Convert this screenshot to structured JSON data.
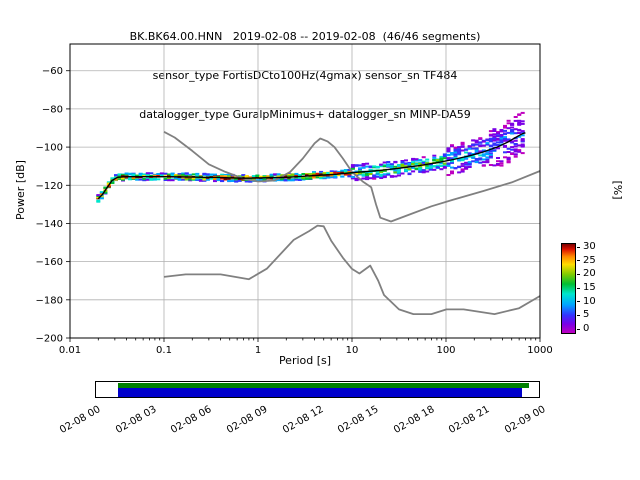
{
  "title": {
    "line1": "BK.BK64.00.HNN   2019-02-08 -- 2019-02-08  (46/46 segments)",
    "line2": "sensor_type FortisDCto100Hz(4gmax) sensor_sn TF484",
    "line3": "datalogger_type GuralpMinimus+ datalogger_sn MINP-DA59"
  },
  "chart_data": {
    "type": "line",
    "title": "BK.BK64.00.HNN 2019-02-08 -- 2019-02-08 (46/46 segments)",
    "xlabel": "Period [s]",
    "ylabel": "Power [dB]",
    "right_label": "[%]",
    "xscale": "log",
    "xlim": [
      0.01,
      1000
    ],
    "ylim": [
      -200,
      -46
    ],
    "grid": true,
    "xticks": [
      0.01,
      0.1,
      1,
      10,
      100,
      1000
    ],
    "xtick_labels": [
      "0.01",
      "0.1",
      "1",
      "10",
      "100",
      "1000"
    ],
    "yticks": [
      -200,
      -180,
      -160,
      -140,
      -120,
      -100,
      -80,
      -60
    ],
    "ytick_labels": [
      "−200",
      "−180",
      "−160",
      "−140",
      "−120",
      "−100",
      "−80",
      "−60"
    ],
    "series": [
      {
        "name": "psd-mode",
        "color": "#000000",
        "x": [
          0.02,
          0.022,
          0.025,
          0.028,
          0.032,
          0.04,
          0.06,
          0.1,
          0.2,
          0.4,
          0.7,
          1,
          1.5,
          2,
          3,
          5,
          7,
          10,
          15,
          20,
          30,
          50,
          80,
          120,
          180,
          250,
          350,
          450,
          550,
          650,
          700
        ],
        "y": [
          -127,
          -125,
          -121,
          -117.5,
          -115.8,
          -115.5,
          -115.5,
          -115.5,
          -115.7,
          -116,
          -116.3,
          -116.2,
          -116,
          -115.8,
          -115.3,
          -114.6,
          -114.2,
          -113.4,
          -112.7,
          -112.2,
          -111.2,
          -109.8,
          -108.2,
          -106.5,
          -104.5,
          -102.5,
          -100,
          -97.5,
          -95,
          -93,
          -92.5
        ]
      },
      {
        "name": "noise-model-high",
        "color": "#808080",
        "x": [
          0.1,
          0.13,
          0.2,
          0.3,
          0.45,
          0.7,
          1.0,
          1.5,
          2.2,
          3.0,
          4.0,
          4.6,
          5.5,
          6.5,
          8.0,
          10,
          13,
          16,
          18,
          20,
          26,
          40,
          70,
          120,
          250,
          500,
          1000
        ],
        "y": [
          -92,
          -95,
          -102,
          -109,
          -113,
          -116.5,
          -118,
          -117.5,
          -113,
          -106,
          -98,
          -95.5,
          -97,
          -100,
          -106,
          -113,
          -118,
          -121,
          -130,
          -137,
          -139,
          -135.5,
          -131,
          -127.5,
          -123,
          -118.5,
          -112.5
        ]
      },
      {
        "name": "noise-model-low",
        "color": "#808080",
        "x": [
          0.1,
          0.17,
          0.4,
          0.8,
          1.24,
          2.4,
          3.5,
          4.3,
          5.0,
          6.0,
          8.0,
          10,
          12,
          15.6,
          19,
          21.9,
          31.6,
          45,
          70,
          101,
          154,
          328,
          600,
          1000
        ],
        "y": [
          -168,
          -166.7,
          -166.7,
          -169.2,
          -163.7,
          -148.6,
          -144,
          -141.1,
          -141.5,
          -149,
          -158,
          -163.8,
          -166.2,
          -162.1,
          -170,
          -177.5,
          -185,
          -187.5,
          -187.5,
          -185,
          -185,
          -187.5,
          -184.4,
          -178
        ]
      }
    ],
    "histogram": {
      "pmin": 0.02,
      "pmax": 700,
      "octave_step": 0.125,
      "max_percent": 30,
      "palette": [
        "#bf00bf",
        "#7a00e6",
        "#3333ff",
        "#00a6ff",
        "#00e6cc",
        "#00bf33",
        "#80cc00",
        "#ffdd00",
        "#ff8800",
        "#dd1100",
        "#7a0000"
      ]
    },
    "colorbar": {
      "label": "[%]",
      "ticks": [
        0,
        5,
        10,
        15,
        20,
        25,
        30
      ],
      "tick_labels": [
        "0",
        "5",
        "10",
        "15",
        "20",
        "25",
        "30"
      ],
      "gradient": [
        [
          "0%",
          "#bf00bf"
        ],
        [
          "10%",
          "#7a00e6"
        ],
        [
          "20%",
          "#3333ff"
        ],
        [
          "32%",
          "#00a6ff"
        ],
        [
          "44%",
          "#00e6cc"
        ],
        [
          "55%",
          "#00bf33"
        ],
        [
          "66%",
          "#80cc00"
        ],
        [
          "77%",
          "#ffdd00"
        ],
        [
          "86%",
          "#ff8800"
        ],
        [
          "94%",
          "#dd1100"
        ],
        [
          "100%",
          "#7a0000"
        ]
      ]
    },
    "timeline": {
      "tick_labels": [
        "02-08 00",
        "02-08 03",
        "02-08 06",
        "02-08 09",
        "02-08 12",
        "02-08 15",
        "02-08 18",
        "02-08 21",
        "02-09 00"
      ],
      "start_frac": 0.049,
      "green_end_frac": 0.973,
      "blue_end_frac": 0.957,
      "green_color": "#008000",
      "blue_color": "#0000cc"
    }
  }
}
